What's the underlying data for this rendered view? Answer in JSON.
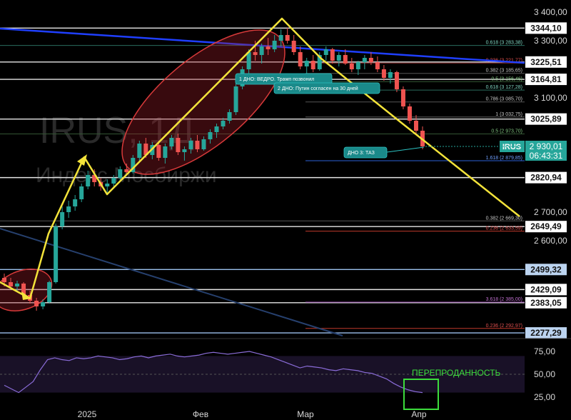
{
  "chart_data": {
    "type": "candlestick",
    "title": "IRUS, 1Д",
    "subtitle": "Индекс Мосбиржи",
    "symbol": "IRUS",
    "last_price": "2 930,01",
    "countdown": "06:43:31",
    "price_axis_ticks": [
      "3 400,00",
      "3 300,00",
      "3 100,00",
      "2 700,00",
      "2 600,00"
    ],
    "x_axis_labels": [
      "2025",
      "Фев",
      "Мар",
      "Апр"
    ],
    "level_labels": [
      {
        "label": "3344,10",
        "price": 3344.1,
        "color": "#ffffff"
      },
      {
        "label": "3225,51",
        "price": 3225.51,
        "color": "#ffffff"
      },
      {
        "label": "3164,81",
        "price": 3164.81,
        "color": "#ffffff"
      },
      {
        "label": "3025,89",
        "price": 3025.89,
        "color": "#ffffff"
      },
      {
        "label": "2820,94",
        "price": 2820.94,
        "color": "#ffffff"
      },
      {
        "label": "2649,49",
        "price": 2649.49,
        "color": "#ffffff"
      },
      {
        "label": "2499,32",
        "price": 2499.32,
        "color": "#bcd4f0"
      },
      {
        "label": "2429,09",
        "price": 2429.09,
        "color": "#ffffff"
      },
      {
        "label": "2383,05",
        "price": 2383.05,
        "color": "#ffffff"
      },
      {
        "label": "2277,29",
        "price": 2277.29,
        "color": "#bcd4f0"
      }
    ],
    "fib_levels": [
      {
        "label": "0.618 (3 283,38)",
        "price": 3283.38,
        "color": "#7fd6c2",
        "line": "#2a6b5e"
      },
      {
        "label": "0.236 (3 221,77)",
        "price": 3221.77,
        "color": "#e05050",
        "line": "#8b2a2a"
      },
      {
        "label": "0.382 (3 185,65)",
        "price": 3185.65,
        "color": "#c8c8c8",
        "line": "#555555"
      },
      {
        "label": "0.5 (3 156,46)",
        "price": 3156.46,
        "color": "#7fc47f",
        "line": "#335533"
      },
      {
        "label": "0.618 (3 127,28)",
        "price": 3127.28,
        "color": "#7fd6c2",
        "line": "#2a6b5e"
      },
      {
        "label": "0.786 (3 085,70)",
        "price": 3085.7,
        "color": "#c8c8c8",
        "line": "#555555"
      },
      {
        "label": "1 (3 032,75)",
        "price": 3032.75,
        "color": "#c8c8c8",
        "line": "#666666"
      },
      {
        "label": "0.5 (2 973,70)",
        "price": 2973.7,
        "color": "#7fc47f",
        "line": "#335533"
      },
      {
        "label": "1.618 (2 879,85)",
        "price": 2879.85,
        "color": "#6fa0ff",
        "line": "#2c5fd6"
      },
      {
        "label": "0.382 (2 669,30)",
        "price": 2669.3,
        "color": "#c8c8c8",
        "line": "#555555"
      },
      {
        "label": "0.236 (2 633,59)",
        "price": 2633.59,
        "color": "#e05050",
        "line": "#c0392b"
      },
      {
        "label": "3.618 (2 385,00)",
        "price": 2385.0,
        "color": "#c070d0",
        "line": "#8a3aa0"
      },
      {
        "label": "0.236 (2 292,97)",
        "price": 2292.97,
        "color": "#e05050",
        "line": "#c0392b"
      }
    ],
    "annotations": [
      "1 ДНО: ВЕДРО. Трамп позвонил",
      "2 ДНО: Путин согласен на 30 дней",
      "ДНО 3: ТАЗ"
    ],
    "rsi": {
      "label": "ПЕРЕПРОДАННОСТЬ",
      "ticks": [
        "75,00",
        "50,00",
        "25,00"
      ],
      "values": [
        38,
        34,
        30,
        36,
        42,
        55,
        66,
        68,
        66,
        65,
        68,
        67,
        68,
        70,
        69,
        68,
        66,
        67,
        69,
        70,
        68,
        70,
        71,
        72,
        70,
        69,
        70,
        71,
        73,
        74,
        73,
        72,
        73,
        74,
        75,
        73,
        71,
        69,
        66,
        63,
        60,
        57,
        59,
        58,
        57,
        55,
        54,
        56,
        55,
        54,
        52,
        51,
        48,
        45,
        40,
        36,
        33,
        31,
        30
      ]
    },
    "candles": [
      [
        2470,
        2485,
        2440,
        2455
      ],
      [
        2455,
        2470,
        2430,
        2440
      ],
      [
        2440,
        2460,
        2425,
        2450
      ],
      [
        2450,
        2455,
        2400,
        2410
      ],
      [
        2410,
        2425,
        2380,
        2390
      ],
      [
        2390,
        2400,
        2355,
        2370
      ],
      [
        2370,
        2395,
        2360,
        2385
      ],
      [
        2385,
        2460,
        2380,
        2455
      ],
      [
        2455,
        2660,
        2450,
        2650
      ],
      [
        2650,
        2720,
        2640,
        2700
      ],
      [
        2700,
        2740,
        2680,
        2720
      ],
      [
        2720,
        2760,
        2705,
        2745
      ],
      [
        2745,
        2800,
        2735,
        2790
      ],
      [
        2790,
        2845,
        2780,
        2830
      ],
      [
        2830,
        2850,
        2790,
        2805
      ],
      [
        2805,
        2820,
        2775,
        2790
      ],
      [
        2790,
        2815,
        2760,
        2800
      ],
      [
        2800,
        2830,
        2790,
        2820
      ],
      [
        2820,
        2860,
        2810,
        2850
      ],
      [
        2850,
        2870,
        2830,
        2840
      ],
      [
        2840,
        2900,
        2835,
        2890
      ],
      [
        2890,
        2950,
        2880,
        2940
      ],
      [
        2940,
        2960,
        2890,
        2900
      ],
      [
        2900,
        2945,
        2885,
        2935
      ],
      [
        2935,
        2950,
        2880,
        2890
      ],
      [
        2890,
        2940,
        2870,
        2930
      ],
      [
        2930,
        2970,
        2920,
        2960
      ],
      [
        2960,
        2975,
        2900,
        2910
      ],
      [
        2910,
        2930,
        2880,
        2920
      ],
      [
        2920,
        2960,
        2905,
        2950
      ],
      [
        2950,
        2970,
        2910,
        2920
      ],
      [
        2920,
        2965,
        2915,
        2955
      ],
      [
        2955,
        2990,
        2940,
        2980
      ],
      [
        2980,
        3010,
        2960,
        3000
      ],
      [
        3000,
        3030,
        2990,
        3020
      ],
      [
        3020,
        3060,
        3010,
        3050
      ],
      [
        3050,
        3150,
        3040,
        3140
      ],
      [
        3140,
        3210,
        3130,
        3200
      ],
      [
        3200,
        3270,
        3180,
        3260
      ],
      [
        3260,
        3300,
        3230,
        3250
      ],
      [
        3250,
        3290,
        3220,
        3280
      ],
      [
        3280,
        3310,
        3250,
        3270
      ],
      [
        3270,
        3320,
        3260,
        3300
      ],
      [
        3300,
        3340,
        3280,
        3320
      ],
      [
        3320,
        3345,
        3290,
        3300
      ],
      [
        3300,
        3320,
        3250,
        3260
      ],
      [
        3260,
        3280,
        3200,
        3210
      ],
      [
        3210,
        3240,
        3180,
        3230
      ],
      [
        3230,
        3250,
        3190,
        3200
      ],
      [
        3200,
        3260,
        3195,
        3250
      ],
      [
        3250,
        3280,
        3230,
        3270
      ],
      [
        3270,
        3275,
        3220,
        3230
      ],
      [
        3230,
        3260,
        3210,
        3250
      ],
      [
        3250,
        3270,
        3215,
        3220
      ],
      [
        3220,
        3240,
        3190,
        3200
      ],
      [
        3200,
        3230,
        3180,
        3225
      ],
      [
        3225,
        3250,
        3200,
        3240
      ],
      [
        3240,
        3260,
        3215,
        3225
      ],
      [
        3225,
        3245,
        3190,
        3200
      ],
      [
        3200,
        3215,
        3160,
        3170
      ],
      [
        3170,
        3200,
        3150,
        3190
      ],
      [
        3190,
        3195,
        3120,
        3130
      ],
      [
        3130,
        3140,
        3060,
        3070
      ],
      [
        3070,
        3080,
        3010,
        3020
      ],
      [
        3020,
        3040,
        2970,
        2985
      ],
      [
        2985,
        3000,
        2920,
        2930
      ]
    ]
  }
}
